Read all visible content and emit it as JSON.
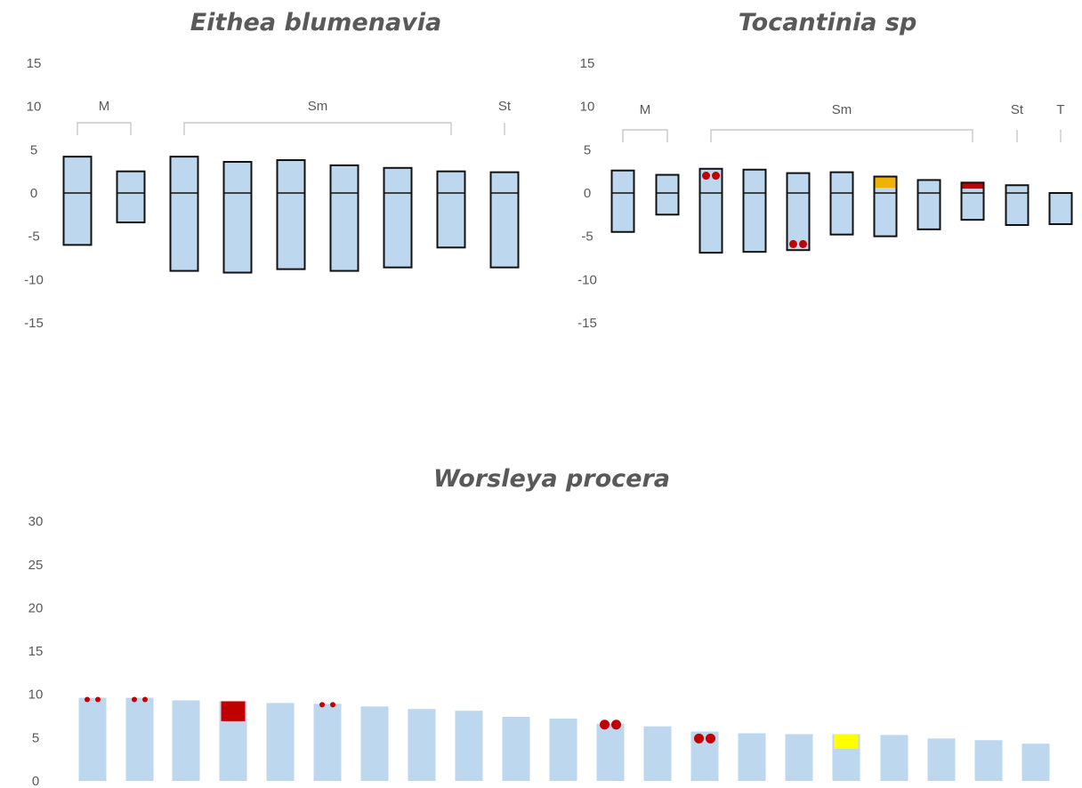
{
  "chart_data": [
    {
      "type": "bar",
      "title": "Eithea blumenavia",
      "ylim": [
        -15,
        15
      ],
      "yticks": [
        "15",
        "10",
        "5",
        "0",
        "-5",
        "-10",
        "-15"
      ],
      "grid": false,
      "legend": "none",
      "groups": [
        {
          "label": "M",
          "start": 0,
          "end": 1
        },
        {
          "label": "Sm",
          "start": 2,
          "end": 7
        },
        {
          "label": "St",
          "start": 8,
          "end": 8
        }
      ],
      "chromosomes": [
        {
          "top": 4.2,
          "bottom": -6.0
        },
        {
          "top": 2.5,
          "bottom": -3.4
        },
        {
          "top": 4.2,
          "bottom": -9.0
        },
        {
          "top": 3.6,
          "bottom": -9.2
        },
        {
          "top": 3.8,
          "bottom": -8.8
        },
        {
          "top": 3.2,
          "bottom": -9.0
        },
        {
          "top": 2.9,
          "bottom": -8.6
        },
        {
          "top": 2.5,
          "bottom": -6.3
        },
        {
          "top": 2.4,
          "bottom": -8.6
        }
      ],
      "colors": {
        "bar": "#bdd7ee",
        "outline": "#111111"
      }
    },
    {
      "type": "bar",
      "title": "Tocantinia sp",
      "ylim": [
        -15,
        15
      ],
      "yticks": [
        "15",
        "10",
        "5",
        "0",
        "-5",
        "-10",
        "-15"
      ],
      "grid": false,
      "legend": "none",
      "groups": [
        {
          "label": "M",
          "start": 0,
          "end": 1
        },
        {
          "label": "Sm",
          "start": 2,
          "end": 8
        },
        {
          "label": "St",
          "start": 9,
          "end": 9
        },
        {
          "label": "T",
          "start": 10,
          "end": 10
        }
      ],
      "chromosomes": [
        {
          "top": 2.6,
          "bottom": -4.5
        },
        {
          "top": 2.1,
          "bottom": -2.5
        },
        {
          "top": 2.8,
          "bottom": -6.9,
          "marks": [
            {
              "kind": "dots",
              "at": 2.0,
              "color": "#c00000"
            }
          ]
        },
        {
          "top": 2.7,
          "bottom": -6.8
        },
        {
          "top": 2.3,
          "bottom": -6.6,
          "marks": [
            {
              "kind": "dots",
              "at": -5.9,
              "color": "#c00000"
            }
          ]
        },
        {
          "top": 2.4,
          "bottom": -4.8
        },
        {
          "top": 1.9,
          "bottom": -5.0,
          "marks": [
            {
              "kind": "band",
              "from": 0.6,
              "to": 1.9,
              "color": "#f0b400"
            }
          ]
        },
        {
          "top": 1.5,
          "bottom": -4.2
        },
        {
          "top": 1.2,
          "bottom": -3.1,
          "marks": [
            {
              "kind": "band",
              "from": 0.5,
              "to": 1.2,
              "color": "#c00000"
            }
          ]
        },
        {
          "top": 0.9,
          "bottom": -3.7
        },
        {
          "top": 0.0,
          "bottom": -3.6
        }
      ],
      "colors": {
        "bar": "#bdd7ee",
        "outline": "#111111"
      }
    },
    {
      "type": "bar",
      "title": "Worsleya procera",
      "ylim": [
        0,
        30
      ],
      "yticks": [
        "30",
        "25",
        "20",
        "15",
        "10",
        "5",
        "0"
      ],
      "grid": false,
      "legend": "none",
      "values": [
        9.6,
        9.6,
        9.3,
        9.2,
        9.0,
        8.9,
        8.6,
        8.3,
        8.1,
        7.4,
        7.2,
        6.6,
        6.3,
        5.7,
        5.5,
        5.4,
        5.4,
        5.3,
        4.9,
        4.7,
        4.3
      ],
      "marks": [
        {
          "index": 0,
          "kind": "dots-small",
          "at": 9.4,
          "color": "#c00000"
        },
        {
          "index": 1,
          "kind": "dots-small",
          "at": 9.4,
          "color": "#c00000"
        },
        {
          "index": 3,
          "kind": "band",
          "from": 6.9,
          "to": 9.2,
          "color": "#c00000"
        },
        {
          "index": 5,
          "kind": "dots-small",
          "at": 8.8,
          "color": "#c00000"
        },
        {
          "index": 11,
          "kind": "dots",
          "at": 6.5,
          "color": "#c00000"
        },
        {
          "index": 13,
          "kind": "dots",
          "at": 4.9,
          "color": "#c00000"
        },
        {
          "index": 16,
          "kind": "band",
          "from": 3.7,
          "to": 5.4,
          "color": "#ffff00"
        }
      ],
      "colors": {
        "bar": "#bdd7ee"
      }
    }
  ]
}
